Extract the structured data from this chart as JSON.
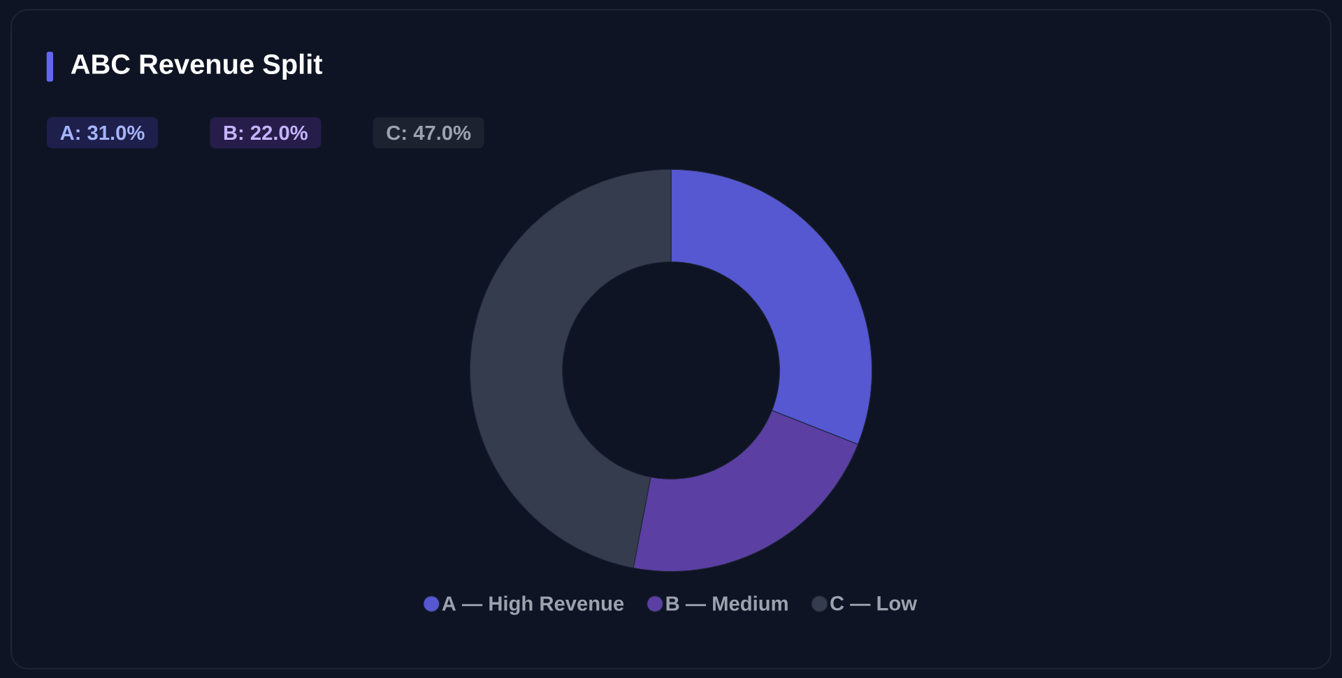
{
  "chart_data": {
    "type": "donut",
    "title": "ABC Revenue Split",
    "categories": [
      "A — High Revenue",
      "B — Medium",
      "C — Low"
    ],
    "values": [
      31,
      22,
      47
    ],
    "colors": [
      "#5558d0",
      "#5b3fa3",
      "#343c4e"
    ],
    "annotations": [
      "A: 31.0%",
      "B: 22.0%",
      "C: 47.0%"
    ],
    "legend": "bottom"
  }
}
